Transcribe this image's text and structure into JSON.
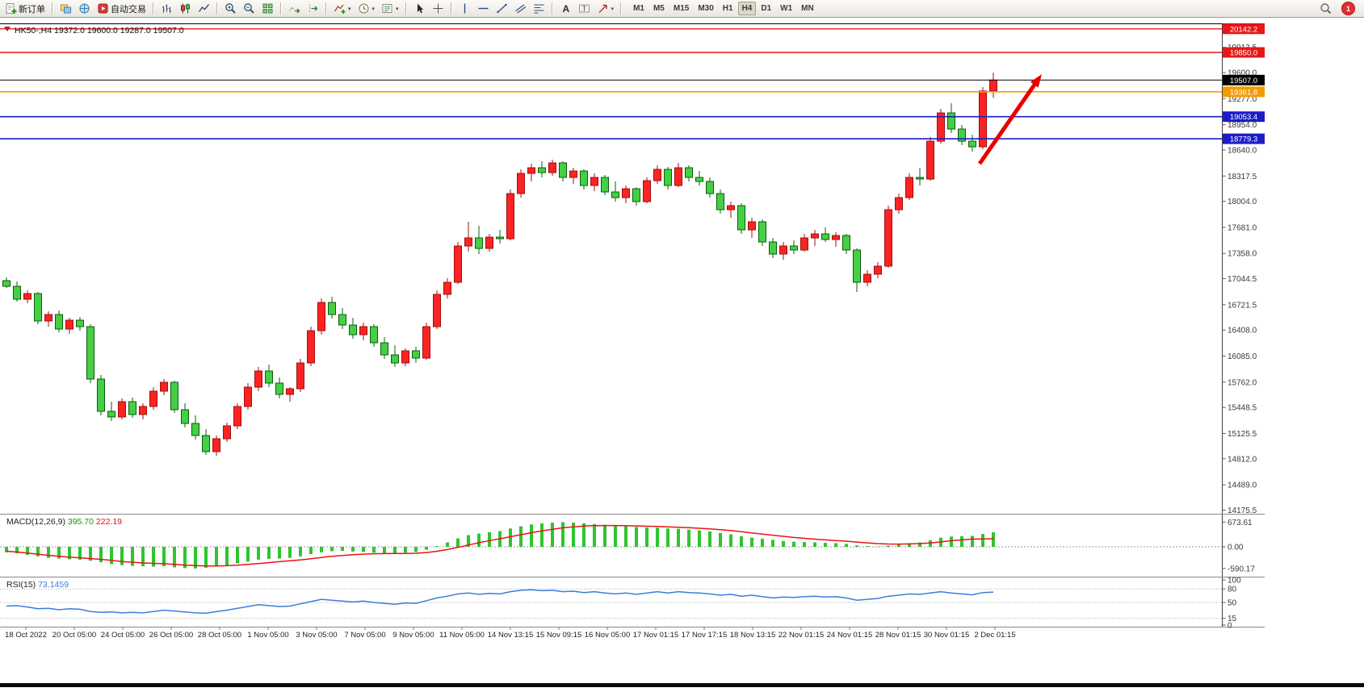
{
  "window": {
    "title_symbol": "HK50-,H4",
    "title_ohlc": "19372.0 19600.0 19287.0 19507.0"
  },
  "toolbar": {
    "new_order_label": "新订单",
    "auto_trading_label": "自动交易",
    "timeframes": [
      "M1",
      "M5",
      "M15",
      "M30",
      "H1",
      "H4",
      "D1",
      "W1",
      "MN"
    ],
    "active_timeframe": "H4",
    "notification_count": "1"
  },
  "icons": {
    "caret": "▾",
    "text_tool": "A",
    "label_tool": "T"
  },
  "chart_data": {
    "type": "candlestick",
    "symbol": "HK50-",
    "timeframe": "H4",
    "current_bar": {
      "open": 19372.0,
      "high": 19600.0,
      "low": 19287.0,
      "close": 19507.0
    },
    "up_color": "#ff2222",
    "up_border": "#991111",
    "down_color": "#44d044",
    "down_border": "#0d5c0d",
    "price_axis_labels": [
      "19913.5",
      "19600.0",
      "19277.0",
      "18954.0",
      "18640.0",
      "18317.5",
      "18004.0",
      "17681.0",
      "17358.0",
      "17044.5",
      "16721.5",
      "16408.0",
      "16085.0",
      "15762.0",
      "15448.5",
      "15125.5",
      "14812.0",
      "14489.0",
      "14175.5"
    ],
    "levels": [
      {
        "price": 20142.2,
        "label": "20142.2",
        "color": "#e81717",
        "width": 1.4
      },
      {
        "price": 19850.0,
        "label": "19850.0",
        "color": "#e81717",
        "width": 1.4
      },
      {
        "price": 19507.0,
        "label": "19507.0",
        "color": "#000000",
        "width": 1
      },
      {
        "price": 19361.8,
        "label": "19361.8",
        "color": "#f59b00",
        "width": 1.6
      },
      {
        "price": 19053.4,
        "label": "19053.4",
        "color": "#1d1dc8",
        "width": 1.6
      },
      {
        "price": 18779.3,
        "label": "18779.3",
        "color": "#1d1dc8",
        "width": 1.6
      }
    ],
    "candles": [
      [
        17020,
        17060,
        16930,
        16950
      ],
      [
        16950,
        17010,
        16760,
        16790
      ],
      [
        16790,
        16900,
        16740,
        16860
      ],
      [
        16860,
        16880,
        16480,
        16520
      ],
      [
        16520,
        16640,
        16450,
        16600
      ],
      [
        16600,
        16650,
        16380,
        16420
      ],
      [
        16420,
        16560,
        16360,
        16530
      ],
      [
        16530,
        16570,
        16400,
        16450
      ],
      [
        16450,
        16480,
        15750,
        15800
      ],
      [
        15800,
        15850,
        15350,
        15400
      ],
      [
        15400,
        15520,
        15280,
        15330
      ],
      [
        15330,
        15560,
        15300,
        15520
      ],
      [
        15520,
        15570,
        15320,
        15360
      ],
      [
        15360,
        15500,
        15300,
        15460
      ],
      [
        15460,
        15700,
        15420,
        15650
      ],
      [
        15650,
        15800,
        15600,
        15760
      ],
      [
        15760,
        15780,
        15380,
        15420
      ],
      [
        15420,
        15500,
        15200,
        15250
      ],
      [
        15250,
        15350,
        15050,
        15100
      ],
      [
        15100,
        15180,
        14860,
        14900
      ],
      [
        14900,
        15100,
        14850,
        15060
      ],
      [
        15060,
        15260,
        15020,
        15220
      ],
      [
        15220,
        15500,
        15180,
        15460
      ],
      [
        15460,
        15750,
        15420,
        15700
      ],
      [
        15700,
        15950,
        15650,
        15900
      ],
      [
        15900,
        15980,
        15700,
        15750
      ],
      [
        15750,
        15820,
        15560,
        15610
      ],
      [
        15610,
        15700,
        15520,
        15680
      ],
      [
        15680,
        16050,
        15640,
        16000
      ],
      [
        16000,
        16450,
        15960,
        16400
      ],
      [
        16400,
        16800,
        16350,
        16750
      ],
      [
        16750,
        16820,
        16550,
        16600
      ],
      [
        16600,
        16680,
        16420,
        16470
      ],
      [
        16470,
        16560,
        16300,
        16350
      ],
      [
        16350,
        16500,
        16280,
        16450
      ],
      [
        16450,
        16480,
        16200,
        16250
      ],
      [
        16250,
        16320,
        16050,
        16100
      ],
      [
        16100,
        16220,
        15950,
        16000
      ],
      [
        16000,
        16180,
        15960,
        16150
      ],
      [
        16150,
        16200,
        16000,
        16060
      ],
      [
        16060,
        16500,
        16040,
        16450
      ],
      [
        16450,
        16900,
        16420,
        16850
      ],
      [
        16850,
        17050,
        16800,
        17000
      ],
      [
        17000,
        17500,
        16980,
        17450
      ],
      [
        17450,
        17750,
        17380,
        17550
      ],
      [
        17550,
        17700,
        17350,
        17420
      ],
      [
        17420,
        17600,
        17380,
        17560
      ],
      [
        17560,
        17650,
        17480,
        17540
      ],
      [
        17540,
        18150,
        17520,
        18100
      ],
      [
        18100,
        18400,
        18050,
        18350
      ],
      [
        18350,
        18470,
        18250,
        18420
      ],
      [
        18420,
        18500,
        18300,
        18360
      ],
      [
        18360,
        18520,
        18320,
        18480
      ],
      [
        18480,
        18500,
        18250,
        18300
      ],
      [
        18300,
        18420,
        18220,
        18380
      ],
      [
        18380,
        18400,
        18150,
        18200
      ],
      [
        18200,
        18350,
        18130,
        18300
      ],
      [
        18300,
        18330,
        18080,
        18120
      ],
      [
        18120,
        18250,
        18000,
        18050
      ],
      [
        18050,
        18200,
        17980,
        18160
      ],
      [
        18160,
        18180,
        17950,
        18000
      ],
      [
        18000,
        18300,
        17980,
        18260
      ],
      [
        18260,
        18450,
        18220,
        18400
      ],
      [
        18400,
        18430,
        18150,
        18200
      ],
      [
        18200,
        18480,
        18180,
        18420
      ],
      [
        18420,
        18450,
        18250,
        18300
      ],
      [
        18300,
        18380,
        18200,
        18250
      ],
      [
        18250,
        18300,
        18050,
        18100
      ],
      [
        18100,
        18150,
        17850,
        17900
      ],
      [
        17900,
        18000,
        17800,
        17950
      ],
      [
        17950,
        17980,
        17600,
        17650
      ],
      [
        17650,
        17800,
        17550,
        17750
      ],
      [
        17750,
        17780,
        17450,
        17500
      ],
      [
        17500,
        17550,
        17300,
        17350
      ],
      [
        17350,
        17500,
        17280,
        17450
      ],
      [
        17450,
        17520,
        17350,
        17400
      ],
      [
        17400,
        17600,
        17380,
        17550
      ],
      [
        17550,
        17650,
        17450,
        17600
      ],
      [
        17600,
        17680,
        17500,
        17530
      ],
      [
        17530,
        17620,
        17440,
        17580
      ],
      [
        17580,
        17600,
        17350,
        17400
      ],
      [
        17400,
        17420,
        16880,
        17000
      ],
      [
        17000,
        17150,
        16950,
        17100
      ],
      [
        17100,
        17250,
        17050,
        17200
      ],
      [
        17200,
        17950,
        17180,
        17900
      ],
      [
        17900,
        18100,
        17850,
        18050
      ],
      [
        18050,
        18350,
        18020,
        18300
      ],
      [
        18300,
        18420,
        18200,
        18280
      ],
      [
        18280,
        18800,
        18260,
        18750
      ],
      [
        18750,
        19150,
        18720,
        19100
      ],
      [
        19100,
        19220,
        18850,
        18900
      ],
      [
        18900,
        18950,
        18700,
        18750
      ],
      [
        18750,
        18830,
        18620,
        18680
      ],
      [
        18680,
        19420,
        18650,
        19372
      ],
      [
        19372,
        19600,
        19287,
        19507
      ]
    ],
    "time_axis_labels": [
      "18 Oct 2022",
      "20 Oct 05:00",
      "24 Oct 05:00",
      "26 Oct 05:00",
      "28 Oct 05:00",
      "1 Nov 05:00",
      "3 Nov 05:00",
      "7 Nov 05:00",
      "9 Nov 05:00",
      "11 Nov 05:00",
      "14 Nov 13:15",
      "15 Nov 09:15",
      "16 Nov 05:00",
      "17 Nov 01:15",
      "17 Nov 17:15",
      "18 Nov 13:15",
      "22 Nov 01:15",
      "24 Nov 01:15",
      "28 Nov 01:15",
      "30 Nov 01:15",
      "2 Dec 01:15"
    ],
    "trend_arrow": {
      "color": "#e80000",
      "direction": "up-right"
    },
    "macd": {
      "label": "MACD(12,26,9)",
      "value": "395.70",
      "signal_value": "222.19",
      "histogram_color": "#2ec52e",
      "signal_color": "#e81414",
      "axis": [
        "673.61",
        "0.00",
        "-590.17"
      ],
      "histogram": [
        -150,
        -180,
        -220,
        -260,
        -300,
        -320,
        -340,
        -350,
        -380,
        -420,
        -470,
        -500,
        -520,
        -530,
        -540,
        -530,
        -560,
        -580,
        -590,
        -570,
        -540,
        -500,
        -450,
        -400,
        -350,
        -330,
        -320,
        -300,
        -260,
        -200,
        -150,
        -120,
        -110,
        -130,
        -140,
        -160,
        -170,
        -180,
        -160,
        -140,
        -80,
        20,
        120,
        230,
        320,
        360,
        400,
        430,
        500,
        560,
        610,
        640,
        660,
        673,
        660,
        640,
        620,
        600,
        580,
        560,
        540,
        530,
        520,
        500,
        490,
        470,
        450,
        420,
        380,
        340,
        290,
        250,
        220,
        190,
        160,
        140,
        130,
        120,
        110,
        100,
        80,
        40,
        20,
        10,
        30,
        60,
        100,
        120,
        180,
        250,
        280,
        290,
        300,
        350,
        396
      ],
      "signal": [
        -120,
        -140,
        -170,
        -200,
        -230,
        -260,
        -280,
        -300,
        -320,
        -340,
        -370,
        -400,
        -420,
        -440,
        -450,
        -460,
        -480,
        -500,
        -510,
        -520,
        -520,
        -515,
        -500,
        -480,
        -455,
        -430,
        -405,
        -380,
        -355,
        -325,
        -290,
        -260,
        -235,
        -215,
        -200,
        -190,
        -185,
        -183,
        -180,
        -175,
        -155,
        -120,
        -75,
        -15,
        50,
        110,
        170,
        220,
        275,
        330,
        385,
        435,
        480,
        518,
        546,
        565,
        576,
        581,
        581,
        577,
        570,
        562,
        554,
        543,
        532,
        520,
        506,
        489,
        467,
        442,
        412,
        380,
        348,
        316,
        285,
        256,
        231,
        209,
        189,
        171,
        153,
        130,
        108,
        88,
        77,
        74,
        79,
        87,
        106,
        135,
        164,
        189,
        211,
        215,
        222.19
      ]
    },
    "rsi": {
      "label": "RSI(15)",
      "value": "73.1459",
      "line_color": "#3c7edb",
      "axis": [
        "100",
        "80",
        "50",
        "15",
        "0"
      ],
      "level_lines": [
        80,
        50,
        15
      ],
      "values": [
        42,
        43,
        40,
        36,
        37,
        34,
        36,
        35,
        30,
        28,
        29,
        27,
        28,
        27,
        30,
        33,
        31,
        29,
        27,
        26,
        30,
        33,
        37,
        41,
        45,
        43,
        41,
        42,
        47,
        52,
        57,
        55,
        53,
        51,
        53,
        50,
        48,
        46,
        49,
        48,
        54,
        60,
        64,
        69,
        71,
        68,
        70,
        69,
        74,
        77,
        78,
        76,
        77,
        74,
        75,
        72,
        74,
        71,
        69,
        71,
        68,
        71,
        74,
        71,
        74,
        72,
        71,
        69,
        66,
        68,
        64,
        66,
        63,
        60,
        62,
        61,
        63,
        64,
        62,
        63,
        60,
        55,
        57,
        59,
        64,
        66,
        69,
        68,
        71,
        74,
        71,
        69,
        67,
        72,
        73.1
      ]
    }
  }
}
